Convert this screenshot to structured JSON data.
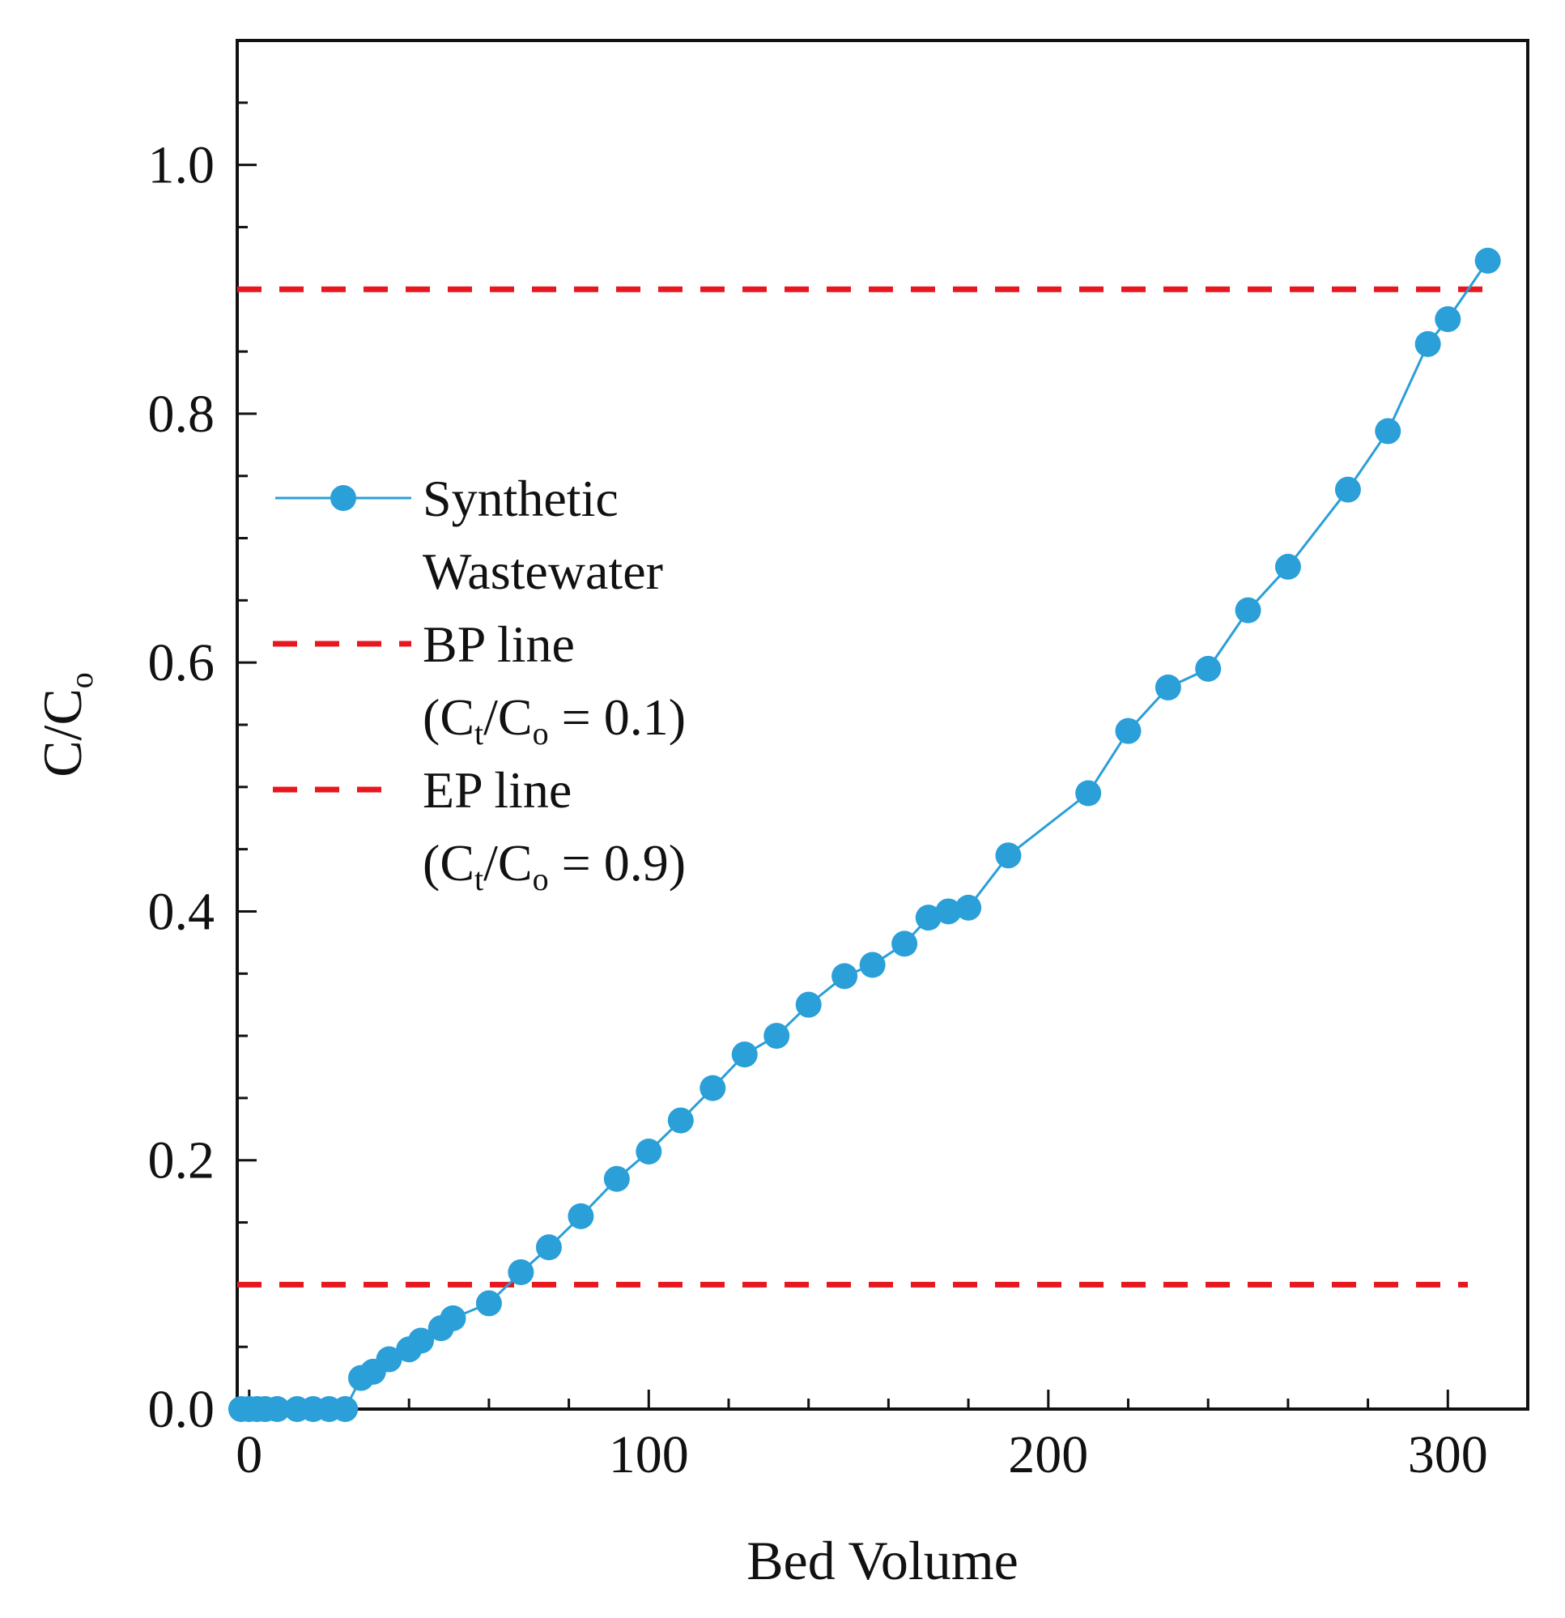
{
  "chart_data": {
    "type": "line",
    "xlabel": "Bed Volume",
    "ylabel": {
      "main": "C/C",
      "sub": "o"
    },
    "xlim": [
      -3,
      320
    ],
    "ylim": [
      0,
      1.1
    ],
    "xticks": [
      0,
      100,
      200,
      300
    ],
    "xtick_labels": [
      "0",
      "100",
      "200",
      "300"
    ],
    "xminor_step": 20,
    "yticks": [
      0,
      0.2,
      0.4,
      0.6,
      0.8,
      1.0
    ],
    "ytick_labels": [
      "0.0",
      "0.2",
      "0.4",
      "0.6",
      "0.8",
      "1.0"
    ],
    "yminor_step": 0.05,
    "grid": false,
    "legend_position": "left-middle",
    "series": [
      {
        "name": "Synthetic Wastewater",
        "legend_lines": [
          "Synthetic",
          "Wastewater"
        ],
        "color": "#2a9fd8",
        "marker": "circle",
        "x": [
          -2,
          0,
          2,
          4,
          7,
          12,
          16,
          20,
          24,
          28,
          31,
          35,
          40,
          43,
          48,
          51,
          60,
          68,
          75,
          83,
          92,
          100,
          108,
          116,
          124,
          132,
          140,
          149,
          156,
          164,
          170,
          175,
          180,
          190,
          210,
          220,
          230,
          240,
          250,
          260,
          275,
          285,
          295,
          300,
          310
        ],
        "y": [
          0.0,
          0.0,
          0.0,
          0.0,
          0.0,
          0.0,
          0.0,
          0.0,
          0.0,
          0.025,
          0.03,
          0.04,
          0.048,
          0.055,
          0.065,
          0.073,
          0.085,
          0.11,
          0.13,
          0.155,
          0.185,
          0.207,
          0.232,
          0.258,
          0.285,
          0.3,
          0.325,
          0.348,
          0.357,
          0.374,
          0.395,
          0.4,
          0.403,
          0.445,
          0.495,
          0.545,
          0.58,
          0.595,
          0.642,
          0.677,
          0.739,
          0.786,
          0.856,
          0.876,
          0.923
        ]
      },
      {
        "name": "BP line",
        "legend_lines": [
          "BP line",
          "(C",
          "t",
          "/C",
          "o",
          " = 0.1)"
        ],
        "color": "#e8171f",
        "style": "dashed",
        "x": [
          -3,
          305
        ],
        "y": [
          0.1,
          0.1
        ]
      },
      {
        "name": "EP line",
        "legend_lines": [
          "EP line",
          "(C",
          "t",
          "/C",
          "o",
          " = 0.9)"
        ],
        "color": "#e8171f",
        "style": "dashed",
        "x": [
          -3,
          310
        ],
        "y": [
          0.9,
          0.9
        ]
      }
    ]
  }
}
